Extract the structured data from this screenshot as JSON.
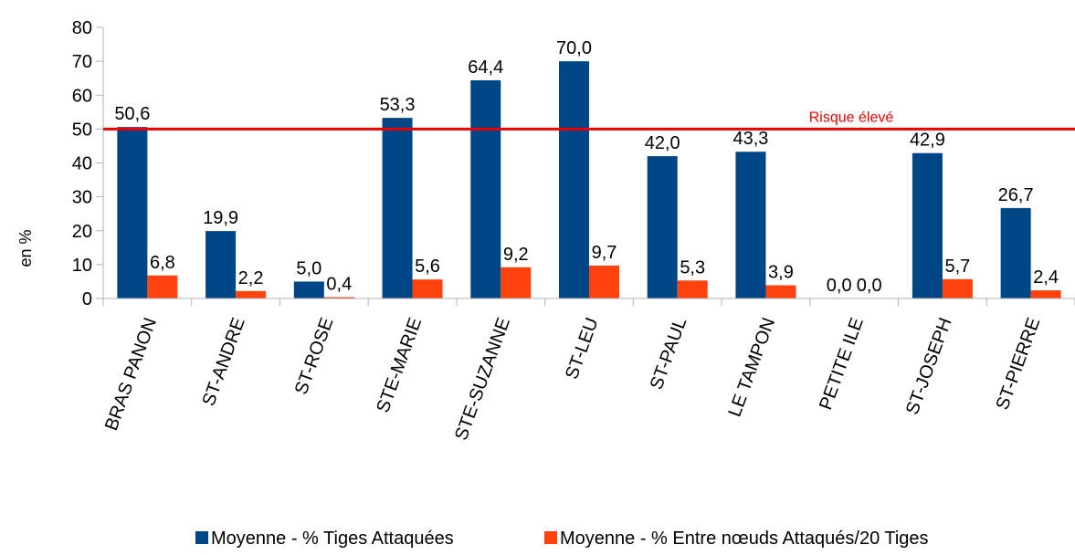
{
  "chart_data": {
    "type": "bar",
    "title": "",
    "xlabel": "",
    "ylabel": "en %",
    "ylim": [
      0,
      80
    ],
    "yticks": [
      0,
      10,
      20,
      30,
      40,
      50,
      60,
      70,
      80
    ],
    "categories": [
      "BRAS PANON",
      "ST-ANDRE",
      "ST-ROSE",
      "STE-MARIE",
      "STE-SUZANNE",
      "ST-LEU",
      "ST-PAUL",
      "LE TAMPON",
      "PETITE ILE",
      "ST-JOSEPH",
      "ST-PIERRE"
    ],
    "series": [
      {
        "name": "Moyenne - % Tiges Attaquées",
        "color": "#004586",
        "values": [
          50.6,
          19.9,
          5.0,
          53.3,
          64.4,
          70.0,
          42.0,
          43.3,
          0.0,
          42.9,
          26.7
        ],
        "labels": [
          "50,6",
          "19,9",
          "5,0",
          "53,3",
          "64,4",
          "70,0",
          "42,0",
          "43,3",
          "0,0",
          "42,9",
          "26,7"
        ]
      },
      {
        "name": "Moyenne - % Entre nœuds Attaqués/20 Tiges",
        "color": "#ff420e",
        "values": [
          6.8,
          2.2,
          0.4,
          5.6,
          9.2,
          9.7,
          5.3,
          3.9,
          0.0,
          5.7,
          2.4
        ],
        "labels": [
          "6,8",
          "2,2",
          "0,4",
          "5,6",
          "9,2",
          "9,7",
          "5,3",
          "3,9",
          "0,0",
          "5,7",
          "2,4"
        ]
      }
    ],
    "threshold": {
      "value": 50,
      "label": "Risque élevé",
      "color": "#ee0000"
    },
    "grid": false,
    "legend_position": "bottom"
  }
}
